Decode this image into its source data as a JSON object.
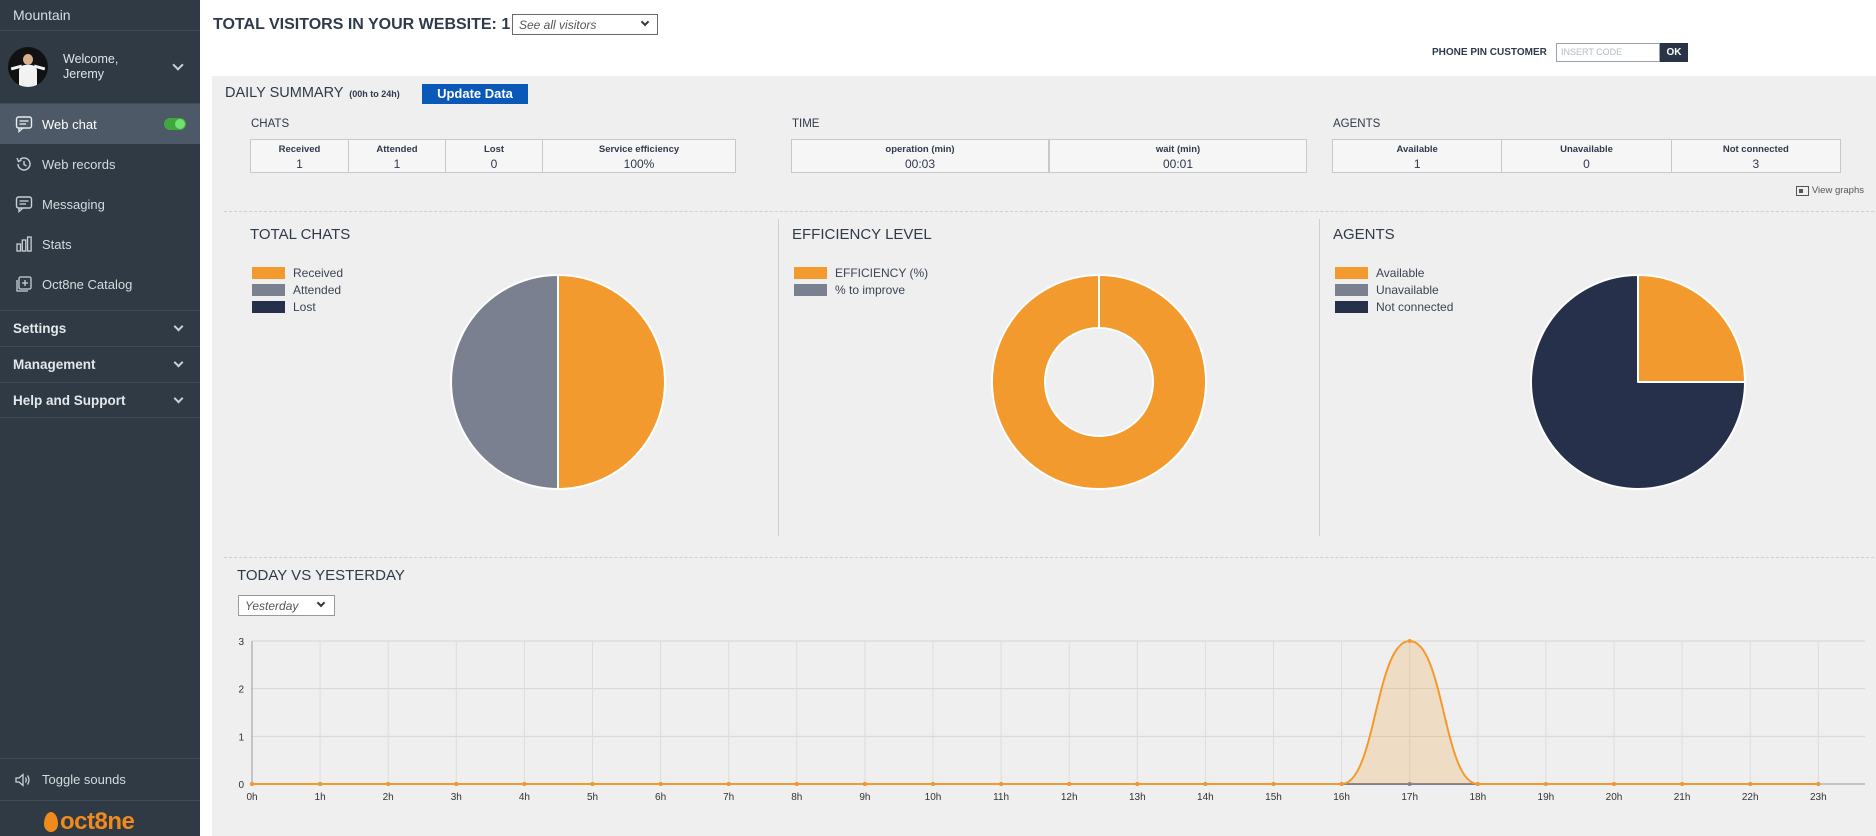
{
  "sidebar": {
    "company": "Mountain",
    "welcome_line1": "Welcome,",
    "welcome_line2": "Jeremy",
    "items": [
      {
        "label": "Web chat",
        "icon": "chat-icon"
      },
      {
        "label": "Web records",
        "icon": "history-icon"
      },
      {
        "label": "Messaging",
        "icon": "message-icon"
      },
      {
        "label": "Stats",
        "icon": "bar-chart-icon"
      },
      {
        "label": "Oct8ne Catalog",
        "icon": "catalog-add-icon"
      }
    ],
    "sections": [
      "Settings",
      "Management",
      "Help and Support"
    ],
    "toggle_sounds": "Toggle sounds",
    "logo_text": "oct8ne"
  },
  "header": {
    "visitors_title": "TOTAL VISITORS IN YOUR WEBSITE: 1",
    "visitors_filter": "See all visitors",
    "phone_pin_label": "PHONE PIN CUSTOMER",
    "phone_pin_placeholder": "INSERT CODE",
    "phone_pin_ok": "OK"
  },
  "summary": {
    "title": "DAILY SUMMARY",
    "subtitle": "(00h to 24h)",
    "update_button": "Update Data",
    "chats": {
      "label": "CHATS",
      "headers": [
        "Received",
        "Attended",
        "Lost",
        "Service efficiency"
      ],
      "values": [
        "1",
        "1",
        "0",
        "100%"
      ]
    },
    "time": {
      "label": "TIME",
      "headers": [
        "operation (min)",
        "wait (min)"
      ],
      "values": [
        "00:03",
        "00:01"
      ]
    },
    "agents": {
      "label": "AGENTS",
      "headers": [
        "Available",
        "Unavailable",
        "Not connected"
      ],
      "values": [
        "1",
        "0",
        "3"
      ]
    },
    "view_graphs": "View graphs"
  },
  "colors": {
    "orange": "#f39a2e",
    "gray": "#7a8090",
    "navy": "#27304a",
    "sidebar_bg": "#2f3a44",
    "accent_blue": "#0a58b8"
  },
  "chart_data": [
    {
      "type": "pie",
      "title": "TOTAL CHATS",
      "labels": [
        "Received",
        "Attended",
        "Lost"
      ],
      "values": [
        1,
        1,
        0
      ],
      "colors": [
        "#f39a2e",
        "#7a8090",
        "#27304a"
      ],
      "legend": "top-left"
    },
    {
      "type": "pie",
      "variant": "donut",
      "title": "EFFICIENCY LEVEL",
      "labels": [
        "EFFICIENCY (%)",
        "% to improve"
      ],
      "values": [
        100,
        0
      ],
      "colors": [
        "#f39a2e",
        "#7a8090"
      ],
      "legend": "top-left"
    },
    {
      "type": "pie",
      "title": "AGENTS",
      "labels": [
        "Available",
        "Unavailable",
        "Not connected"
      ],
      "values": [
        1,
        0,
        3
      ],
      "colors": [
        "#f39a2e",
        "#7a8090",
        "#27304a"
      ],
      "legend": "top-left"
    },
    {
      "type": "area",
      "title": "TODAY VS YESTERDAY",
      "filter": "Yesterday",
      "categories": [
        "0h",
        "1h",
        "2h",
        "3h",
        "4h",
        "5h",
        "6h",
        "7h",
        "8h",
        "9h",
        "10h",
        "11h",
        "12h",
        "13h",
        "14h",
        "15h",
        "16h",
        "17h",
        "18h",
        "19h",
        "20h",
        "21h",
        "22h",
        "23h"
      ],
      "series": [
        {
          "values": [
            0,
            0,
            0,
            0,
            0,
            0,
            0,
            0,
            0,
            0,
            0,
            0,
            0,
            0,
            0,
            0,
            0,
            3,
            0,
            0,
            0,
            0,
            0,
            0
          ],
          "color": "#f39a2e"
        },
        {
          "values": [
            0,
            0,
            0,
            0,
            0,
            0,
            0,
            0,
            0,
            0,
            0,
            0,
            0,
            0,
            0,
            0,
            0,
            0,
            0,
            0,
            0,
            0,
            0,
            0
          ],
          "color": "#7a8090"
        }
      ],
      "yticks": [
        "0",
        "1",
        "2",
        "3"
      ],
      "ylim": [
        0,
        3
      ],
      "grid": true
    }
  ]
}
